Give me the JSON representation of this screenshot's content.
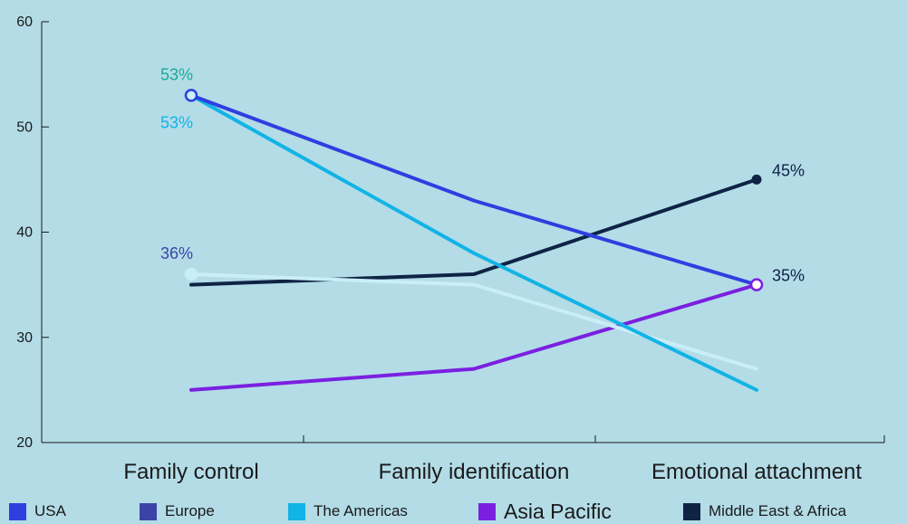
{
  "chart_data": {
    "type": "line",
    "categories": [
      "Family control",
      "Family identification",
      "Emotional attachment"
    ],
    "ylim": [
      20,
      60
    ],
    "yticks": [
      20,
      30,
      40,
      50,
      60
    ],
    "series": [
      {
        "name": "USA",
        "values": [
          53,
          43,
          35
        ],
        "color": "#2e3fe0"
      },
      {
        "name": "Europe",
        "values": [
          36,
          35,
          27
        ],
        "color": "#c9eef8"
      },
      {
        "name": "The Americas",
        "values": [
          53,
          38,
          25
        ],
        "color": "#12b3e6"
      },
      {
        "name": "Asia Pacific",
        "values": [
          25,
          27,
          35
        ],
        "color": "#7b20e0"
      },
      {
        "name": "Middle East & Africa",
        "values": [
          35,
          36,
          45
        ],
        "color": "#0f2344"
      }
    ],
    "legend": [
      {
        "name": "USA",
        "color": "#2e3fe0"
      },
      {
        "name": "Europe",
        "color": "#3b44a6"
      },
      {
        "name": "The Americas",
        "color": "#12b3e6"
      },
      {
        "name": "Asia Pacific",
        "color": "#7b20e0"
      },
      {
        "name": "Middle East & Africa",
        "color": "#0f2344"
      }
    ],
    "annotations": [
      {
        "text": "53%",
        "series": 0,
        "index": 0,
        "color": "#1aa99a",
        "pos": "above"
      },
      {
        "text": "53%",
        "series": 2,
        "index": 0,
        "color": "#12b3e6",
        "pos": "below"
      },
      {
        "text": "36%",
        "series": 1,
        "index": 0,
        "color": "#3b44a6",
        "pos": "above"
      },
      {
        "text": "45%",
        "series": 4,
        "index": 2,
        "color": "#0f2344",
        "pos": "right"
      },
      {
        "text": "35%",
        "series": 3,
        "index": 2,
        "color": "#0f2344",
        "pos": "right"
      }
    ],
    "markers": [
      {
        "series": 0,
        "index": 0,
        "style": "hollow",
        "fill": "#c9eef8"
      },
      {
        "series": 1,
        "index": 0,
        "style": "hollow",
        "fill": "#c9eef8"
      },
      {
        "series": 4,
        "index": 2,
        "style": "solid"
      },
      {
        "series": 3,
        "index": 2,
        "style": "hollow",
        "fill": "#ffffff"
      }
    ],
    "legend_position": "bottom",
    "grid": false
  }
}
